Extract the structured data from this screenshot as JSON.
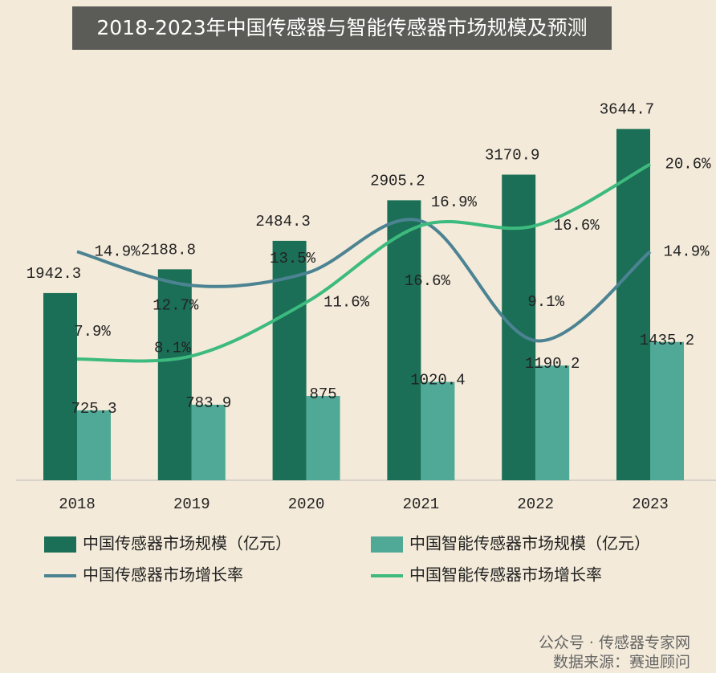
{
  "chart_data": {
    "type": "bar-line",
    "title": "2018-2023年中国传感器与智能传感器市场规模及预测",
    "categories": [
      "2018",
      "2019",
      "2020",
      "2021",
      "2022",
      "2023"
    ],
    "ylim": [
      0,
      3900
    ],
    "y2lim": [
      0,
      24.5
    ],
    "series": [
      {
        "name": "中国传感器市场规模（亿元）",
        "type": "bar",
        "color": "#1b6f56",
        "values": [
          1942.3,
          2188.8,
          2484.3,
          2905.2,
          3170.9,
          3644.7
        ]
      },
      {
        "name": "中国智能传感器市场规模（亿元）",
        "type": "bar",
        "color": "#4fa996",
        "values": [
          725.3,
          783.9,
          875,
          1020.4,
          1190.2,
          1435.2
        ]
      },
      {
        "name": "中国传感器市场增长率",
        "type": "line",
        "axis": "y2",
        "color": "#4c8393",
        "values": [
          14.9,
          12.7,
          13.5,
          16.9,
          9.1,
          14.9
        ],
        "value_labels": [
          "14.9%",
          "12.7%",
          "13.5%",
          "16.9%",
          "9.1%",
          "14.9%"
        ]
      },
      {
        "name": "中国智能传感器市场增长率",
        "type": "line",
        "axis": "y2",
        "color": "#3dba7e",
        "values": [
          7.9,
          8.1,
          11.6,
          16.6,
          16.6,
          20.6
        ],
        "value_labels": [
          "7.9%",
          "8.1%",
          "11.6%",
          "16.6%",
          "16.6%",
          "20.6%"
        ]
      }
    ],
    "footer": [
      "公众号 · 传感器专家网",
      "数据来源：赛迪顾问"
    ]
  }
}
